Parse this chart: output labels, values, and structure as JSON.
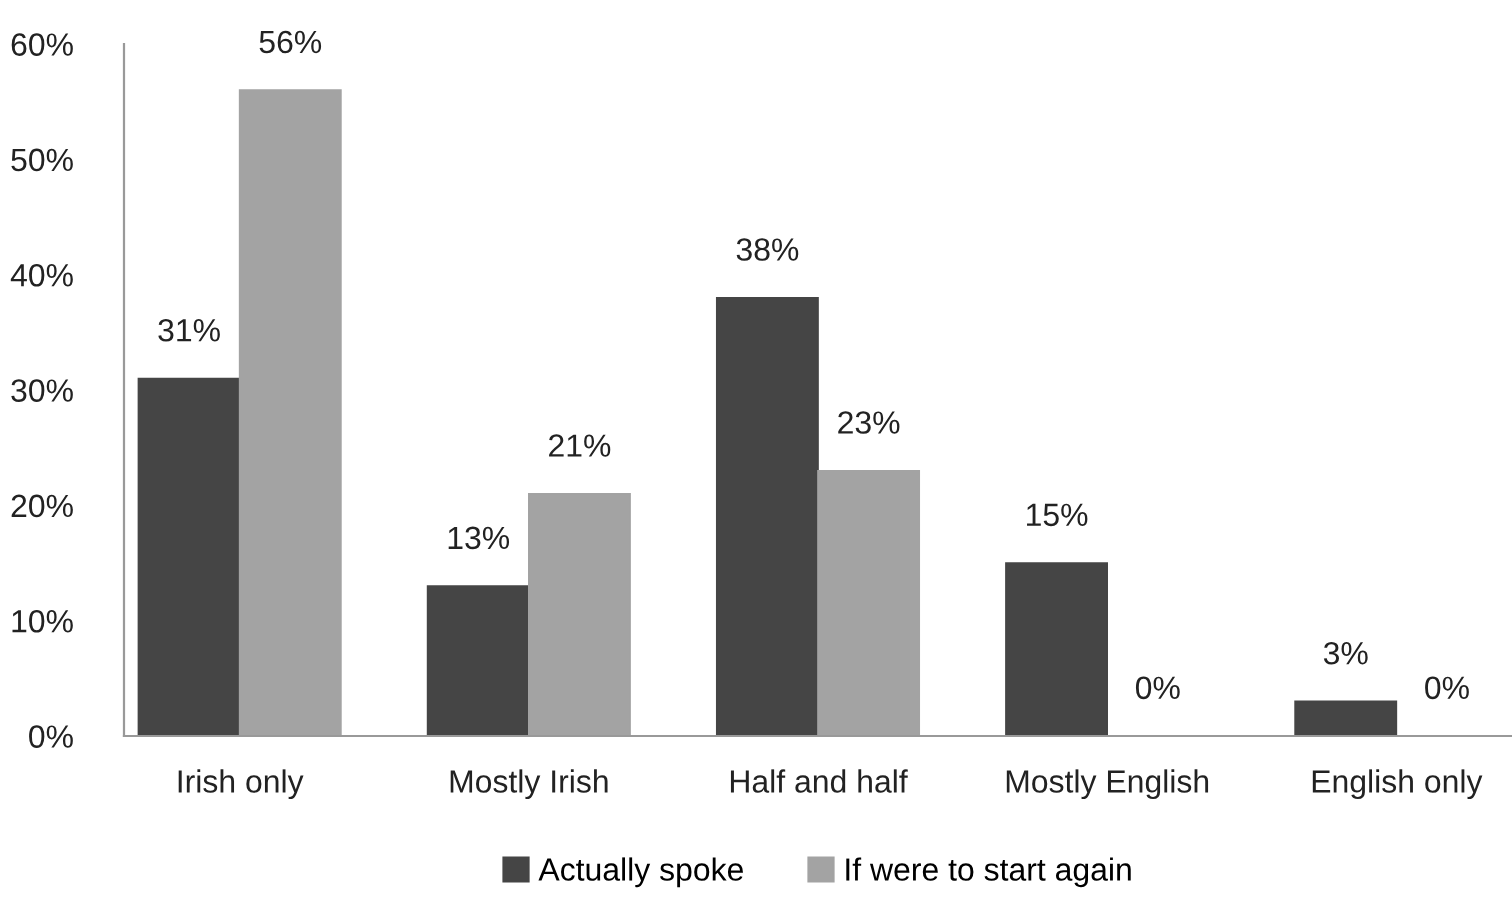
{
  "chart_data": {
    "type": "bar",
    "categories": [
      "Irish only",
      "Mostly Irish",
      "Half and half",
      "Mostly English",
      "English only"
    ],
    "series": [
      {
        "name": "Actually spoke",
        "color": "#454545",
        "values": [
          31,
          13,
          38,
          15,
          3
        ],
        "value_labels": [
          "31%",
          "13%",
          "38%",
          "15%",
          "3%"
        ]
      },
      {
        "name": "If were to start again",
        "color": "#a3a3a3",
        "values": [
          56,
          21,
          23,
          0,
          0
        ],
        "value_labels": [
          "56%",
          "21%",
          "23%",
          "0%",
          "0%"
        ]
      }
    ],
    "ylim": [
      0,
      60
    ],
    "yticks": [
      {
        "value": 0,
        "label": "0%"
      },
      {
        "value": 10,
        "label": "10%"
      },
      {
        "value": 20,
        "label": "20%"
      },
      {
        "value": 30,
        "label": "30%"
      },
      {
        "value": 40,
        "label": "40%"
      },
      {
        "value": 50,
        "label": "50%"
      },
      {
        "value": 60,
        "label": "60%"
      }
    ],
    "grid": false,
    "legend": "bottom"
  }
}
